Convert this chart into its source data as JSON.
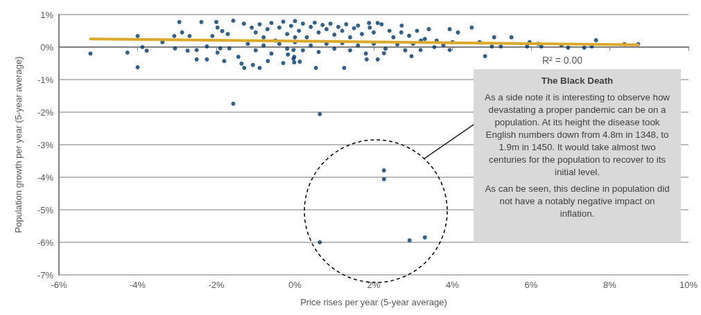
{
  "chart_data": {
    "type": "scatter",
    "xlabel": "Price rises per year (5-year average)",
    "ylabel": "Population growth per year (5-year average)",
    "xlim": [
      -6,
      10
    ],
    "xticks": [
      {
        "value": -6,
        "label": "-6%"
      },
      {
        "value": -4,
        "label": "-4%"
      },
      {
        "value": -2,
        "label": "-2%"
      },
      {
        "value": 0,
        "label": "0%"
      },
      {
        "value": 2,
        "label": "2%"
      },
      {
        "value": 4,
        "label": "4%"
      },
      {
        "value": 6,
        "label": "6%"
      },
      {
        "value": 8,
        "label": "8%"
      },
      {
        "value": 10,
        "label": "10%"
      }
    ],
    "ylim": [
      -7,
      1
    ],
    "yticks": [
      {
        "value": -7,
        "label": "-7%"
      },
      {
        "value": -6,
        "label": "-6%"
      },
      {
        "value": -5,
        "label": "-5%"
      },
      {
        "value": -4,
        "label": "-4%"
      },
      {
        "value": -3,
        "label": "-3%"
      },
      {
        "value": -2,
        "label": "-2%"
      },
      {
        "value": -1,
        "label": "-1%"
      },
      {
        "value": 0,
        "label": "0%"
      },
      {
        "value": 1,
        "label": "1%"
      }
    ],
    "grid": "y",
    "marker": "circle",
    "annotations": [
      "R² = 0.00",
      "The Black Death",
      "As a side note it is interesting to observe how devastating a proper pandemic can be on a population.  At its height the disease took English numbers down from 4.8m in 1348, to 1.9m in 1450.  It would take almost two centuries for the population to recover to its initial level.",
      "As can be seen, this decline in population did not have a notably negative impact on inflation."
    ],
    "series": [
      {
        "type": "scatter",
        "color": "#003a6b",
        "x": [
          -5.2,
          -4.26,
          -4.0,
          -4.0,
          -3.88,
          -3.77,
          -3.37,
          -1.57,
          0.63,
          2.26,
          2.26,
          0.63,
          2.91,
          3.3,
          4.49,
          4.14,
          5.06,
          5.5,
          7.65,
          4.83,
          5.0,
          5.23,
          5.9,
          5.96,
          6.26,
          6.18,
          6.94,
          6.77,
          7.35,
          7.54,
          8.37,
          8.72,
          3.93,
          3.93,
          4.69,
          3.4,
          2.96,
          1.82,
          2.1,
          2.26,
          1.88,
          2.1,
          2.71,
          3.54,
          3.19,
          3.77,
          -2.94,
          -2.38,
          -2.0,
          -1.57,
          -3.07,
          -2.87,
          -2.68,
          -2.5,
          -2.24,
          -3.05,
          -2.73,
          -2.5,
          -1.8,
          -1.29,
          -1.07,
          -0.9,
          -0.69,
          -0.3,
          -0.02,
          0.12,
          0.53,
          1.25,
          -0.18,
          -0.04,
          -0.04,
          -1.36,
          -1.97,
          -2.24,
          -1.97,
          -1.85,
          -1.71,
          -2.1,
          -1.67,
          -1.44,
          -1.9,
          -1.3,
          -1.1,
          -1.0,
          -0.9,
          -0.8,
          -0.7,
          -0.6,
          -0.5,
          -0.4,
          -0.3,
          -0.2,
          -0.1,
          0.0,
          0.1,
          0.2,
          0.3,
          0.4,
          0.5,
          0.6,
          0.7,
          0.8,
          0.9,
          1.0,
          1.1,
          1.2,
          1.3,
          1.4,
          1.5,
          1.6,
          1.7,
          1.9,
          2.0,
          2.2,
          2.4,
          2.5,
          2.7,
          2.9,
          3.1,
          3.3,
          -1.2,
          -1.0,
          -0.8,
          -0.6,
          -0.4,
          -0.2,
          0.0,
          0.2,
          0.4,
          0.6,
          0.8,
          1.0,
          1.2,
          1.4,
          1.6,
          1.8,
          2.0,
          2.3,
          2.6,
          2.8,
          3.0,
          3.2,
          3.6,
          4.0,
          -0.02,
          0.0
        ],
        "values": [
          -0.2,
          -0.17,
          -0.62,
          0.34,
          0.0,
          -0.11,
          0.15,
          -1.74,
          -2.06,
          -3.79,
          -4.06,
          -6.0,
          -5.94,
          -5.85,
          0.6,
          0.45,
          0.3,
          0.3,
          0.21,
          -0.28,
          0.02,
          0.02,
          0.02,
          0.15,
          0.02,
          0.1,
          -0.02,
          0.06,
          -0.02,
          0.02,
          0.09,
          0.09,
          0.55,
          -0.09,
          0.15,
          0.55,
          -0.28,
          -0.38,
          -0.38,
          -0.19,
          0.74,
          0.74,
          0.66,
          0.0,
          -0.09,
          0.06,
          0.77,
          0.77,
          0.77,
          0.81,
          0.34,
          0.45,
          0.34,
          -0.38,
          -0.38,
          -0.04,
          -0.11,
          -0.09,
          -0.43,
          -0.64,
          -0.55,
          -0.64,
          -0.43,
          -0.49,
          -0.47,
          -0.45,
          -0.64,
          -0.64,
          -0.23,
          -0.36,
          -0.09,
          -0.51,
          -0.17,
          0.02,
          0.6,
          0.49,
          0.4,
          0.34,
          -0.04,
          -0.3,
          -0.04,
          0.72,
          0.6,
          0.45,
          0.7,
          0.3,
          0.55,
          0.74,
          0.2,
          0.6,
          0.78,
          0.4,
          0.65,
          0.8,
          0.5,
          0.72,
          0.3,
          0.62,
          0.75,
          0.45,
          0.68,
          0.55,
          0.72,
          0.38,
          0.62,
          0.5,
          0.7,
          0.3,
          0.58,
          0.66,
          0.4,
          0.6,
          0.45,
          0.7,
          0.5,
          0.3,
          0.45,
          0.35,
          0.5,
          0.25,
          0.1,
          -0.1,
          0.05,
          -0.2,
          0.1,
          -0.05,
          0.15,
          -0.1,
          0.05,
          -0.15,
          0.1,
          -0.05,
          0.12,
          -0.1,
          0.05,
          -0.2,
          0.1,
          -0.05,
          0.08,
          -0.1,
          0.1,
          0.2,
          0.2,
          0.15,
          -0.3,
          0.3
        ]
      },
      {
        "type": "line",
        "color": "#dba92b",
        "marker": "none",
        "x": [
          -5.2,
          8.72
        ],
        "values": [
          0.25,
          0.07
        ]
      }
    ]
  }
}
